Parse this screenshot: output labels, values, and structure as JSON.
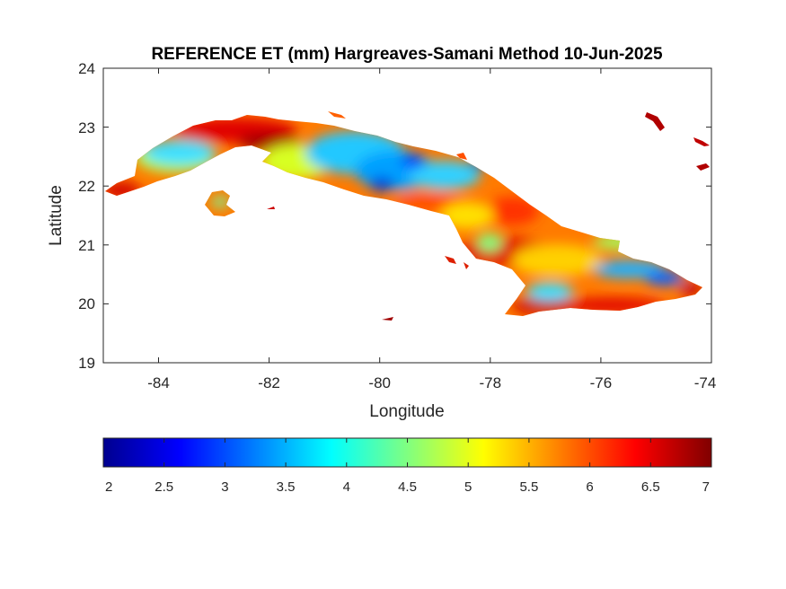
{
  "title": "REFERENCE ET (mm) Hargreaves-Samani Method  10-Jun-2025",
  "map": {
    "xlabel": "Longitude",
    "ylabel": "Latitude",
    "xlim": [
      -85,
      -74
    ],
    "ylim": [
      19,
      24
    ],
    "xticks": [
      -84,
      -82,
      -80,
      -78,
      -76,
      -74
    ],
    "yticks": [
      19,
      20,
      21,
      22,
      23,
      24
    ],
    "region": "Cuba"
  },
  "colorbar": {
    "colormap": "jet",
    "range": [
      2,
      7
    ],
    "ticks": [
      2,
      2.5,
      3,
      3.5,
      4,
      4.5,
      5,
      5.5,
      6,
      6.5,
      7
    ],
    "colors": [
      "#00008f",
      "#0000ff",
      "#00ffff",
      "#80ff80",
      "#ffff00",
      "#ff8000",
      "#ff0000",
      "#800000"
    ]
  },
  "field_summary": {
    "low_values_regions": [
      "central interior",
      "west-central plains",
      "eastern highlands"
    ],
    "high_values_regions": [
      "northern coast",
      "southern coast",
      "eastern tip",
      "Isle of Youth coast"
    ]
  }
}
